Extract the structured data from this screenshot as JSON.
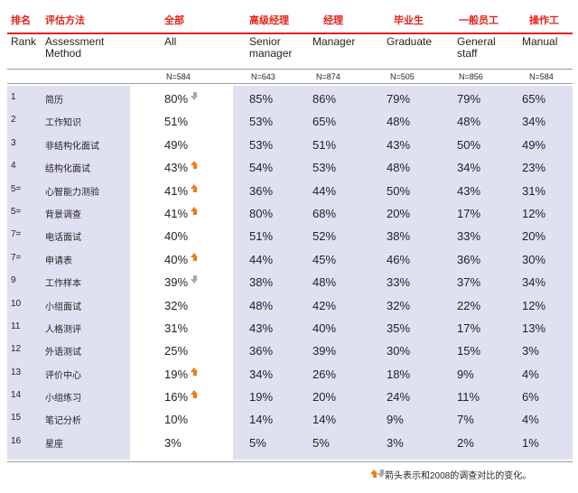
{
  "header_zh": {
    "rank": "排名",
    "method": "评估方法",
    "all": "全部",
    "senior_manager": "高级经理",
    "manager": "经理",
    "graduate": "毕业生",
    "general_staff": "一般员工",
    "manual": "操作工"
  },
  "header_en": {
    "rank": "Rank",
    "method_line1": "Assessment",
    "method_line2": "Method",
    "all": "All",
    "senior_manager_line1": "Senior",
    "senior_manager_line2": "manager",
    "manager": "Manager",
    "graduate": "Graduate",
    "general_staff_line1": "General",
    "general_staff_line2": "staff",
    "manual": "Manual"
  },
  "sample_sizes": {
    "all": "N=584",
    "senior_manager": "N=643",
    "manager": "N=874",
    "graduate": "N=505",
    "general_staff": "N=856",
    "manual": "N=584"
  },
  "rows": [
    {
      "rank": "1",
      "method": "简历",
      "all": "80%",
      "change": "down",
      "sm": "85%",
      "mgr": "86%",
      "grad": "79%",
      "gen": "79%",
      "man": "65%"
    },
    {
      "rank": "2",
      "method": "工作知识",
      "all": "51%",
      "change": "",
      "sm": "53%",
      "mgr": "65%",
      "grad": "48%",
      "gen": "48%",
      "man": "34%"
    },
    {
      "rank": "3",
      "method": "非结构化面试",
      "all": "49%",
      "change": "",
      "sm": "53%",
      "mgr": "51%",
      "grad": "43%",
      "gen": "50%",
      "man": "49%"
    },
    {
      "rank": "4",
      "method": "结构化面试",
      "all": "43%",
      "change": "up",
      "sm": "54%",
      "mgr": "53%",
      "grad": "48%",
      "gen": "34%",
      "man": "23%"
    },
    {
      "rank": "5=",
      "method": "心智能力测验",
      "all": "41%",
      "change": "up",
      "sm": "36%",
      "mgr": "44%",
      "grad": "50%",
      "gen": "43%",
      "man": "31%"
    },
    {
      "rank": "5=",
      "method": "背景调查",
      "all": "41%",
      "change": "up",
      "sm": "80%",
      "mgr": "68%",
      "grad": "20%",
      "gen": "17%",
      "man": "12%"
    },
    {
      "rank": "7=",
      "method": "电话面试",
      "all": "40%",
      "change": "",
      "sm": "51%",
      "mgr": "52%",
      "grad": "38%",
      "gen": "33%",
      "man": "20%"
    },
    {
      "rank": "7=",
      "method": "申请表",
      "all": "40%",
      "change": "up",
      "sm": "44%",
      "mgr": "45%",
      "grad": "46%",
      "gen": "36%",
      "man": "30%"
    },
    {
      "rank": "9",
      "method": "工作样本",
      "all": "39%",
      "change": "down",
      "sm": "38%",
      "mgr": "48%",
      "grad": "33%",
      "gen": "37%",
      "man": "34%"
    },
    {
      "rank": "10",
      "method": "小组面试",
      "all": "32%",
      "change": "",
      "sm": "48%",
      "mgr": "42%",
      "grad": "32%",
      "gen": "22%",
      "man": "12%"
    },
    {
      "rank": "11",
      "method": "人格测评",
      "all": "31%",
      "change": "",
      "sm": "43%",
      "mgr": "40%",
      "grad": "35%",
      "gen": "17%",
      "man": "13%"
    },
    {
      "rank": "12",
      "method": "外语测试",
      "all": "25%",
      "change": "",
      "sm": "36%",
      "mgr": "39%",
      "grad": "30%",
      "gen": "15%",
      "man": "3%"
    },
    {
      "rank": "13",
      "method": "评价中心",
      "all": "19%",
      "change": "up",
      "sm": "34%",
      "mgr": "26%",
      "grad": "18%",
      "gen": "9%",
      "man": "4%"
    },
    {
      "rank": "14",
      "method": "小组练习",
      "all": "16%",
      "change": "up",
      "sm": "19%",
      "mgr": "20%",
      "grad": "24%",
      "gen": "11%",
      "man": "6%"
    },
    {
      "rank": "15",
      "method": "笔记分析",
      "all": "10%",
      "change": "",
      "sm": "14%",
      "mgr": "14%",
      "grad": "9%",
      "gen": "7%",
      "man": "4%"
    },
    {
      "rank": "16",
      "method": "星座",
      "all": "3%",
      "change": "",
      "sm": "5%",
      "mgr": "5%",
      "grad": "3%",
      "gen": "2%",
      "man": "1%"
    }
  ],
  "legend": {
    "text": "箭头表示和2008的调查对比的变化。"
  },
  "colors": {
    "accent_red": "#e2231a",
    "arrow_up": "#f07d15",
    "arrow_down": "#a7a9ac",
    "band": "#dfe0f0"
  }
}
